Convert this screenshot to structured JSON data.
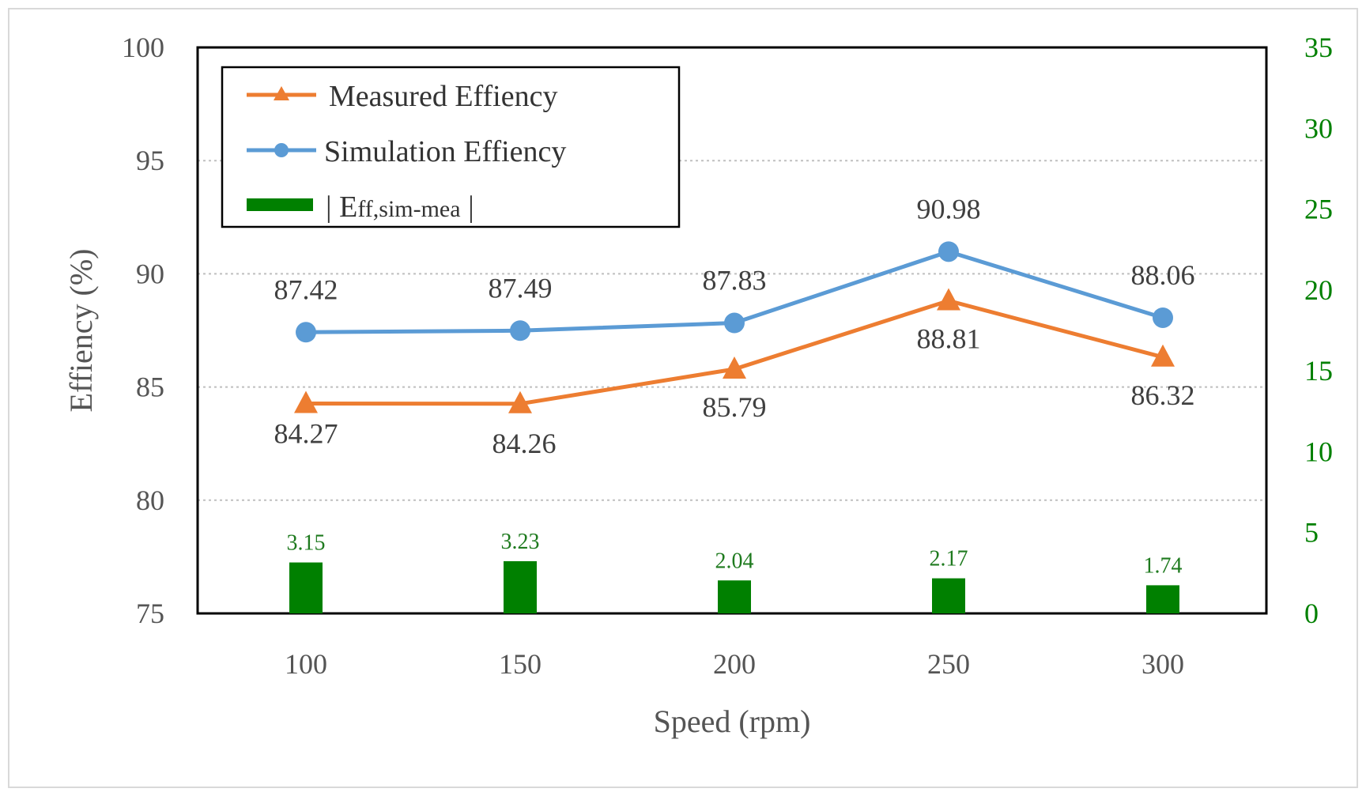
{
  "chart_data": {
    "type": "bar+line",
    "x": [
      "100",
      "150",
      "200",
      "250",
      "300"
    ],
    "xlabel": "Speed (rpm)",
    "ylabel": "Effiency (%)",
    "ylim": [
      75,
      100
    ],
    "yticks": [
      75,
      80,
      85,
      90,
      95,
      100
    ],
    "y2lim": [
      0,
      35
    ],
    "y2ticks": [
      0,
      5,
      10,
      15,
      20,
      25,
      30,
      35
    ],
    "grid": "horizontal dotted",
    "legend_position": "top-left",
    "series": [
      {
        "name": "Measured Effiency",
        "kind": "line",
        "marker": "triangle",
        "axis": "left",
        "color": "#ED7D31",
        "values": [
          84.27,
          84.26,
          85.79,
          88.81,
          86.32
        ],
        "labels": [
          "84.27",
          "84.26",
          "85.79",
          "88.81",
          "86.32"
        ]
      },
      {
        "name": "Simulation Effiency",
        "kind": "line",
        "marker": "circle",
        "axis": "left",
        "color": "#5B9BD5",
        "values": [
          87.42,
          87.49,
          87.83,
          90.98,
          88.06
        ],
        "labels": [
          "87.42",
          "87.49",
          "87.83",
          "90.98",
          "88.06"
        ]
      },
      {
        "name": "| Eff,sim-mea |",
        "kind": "bar",
        "axis": "right",
        "color": "#008000",
        "values": [
          3.15,
          3.23,
          2.04,
          2.17,
          1.74
        ],
        "labels": [
          "3.15",
          "3.23",
          "2.04",
          "2.17",
          "1.74"
        ]
      }
    ],
    "legend": {
      "measured": "Measured Effiency",
      "simulation": "Simulation Effiency",
      "diff_prefix": "| E",
      "diff_sub": "ff,sim-mea",
      "diff_suffix": " |"
    },
    "colors": {
      "right_axis": "#008000",
      "bar_label": "#1E7A1E",
      "grid": "#BFBFBF",
      "frame": "#000000"
    }
  }
}
